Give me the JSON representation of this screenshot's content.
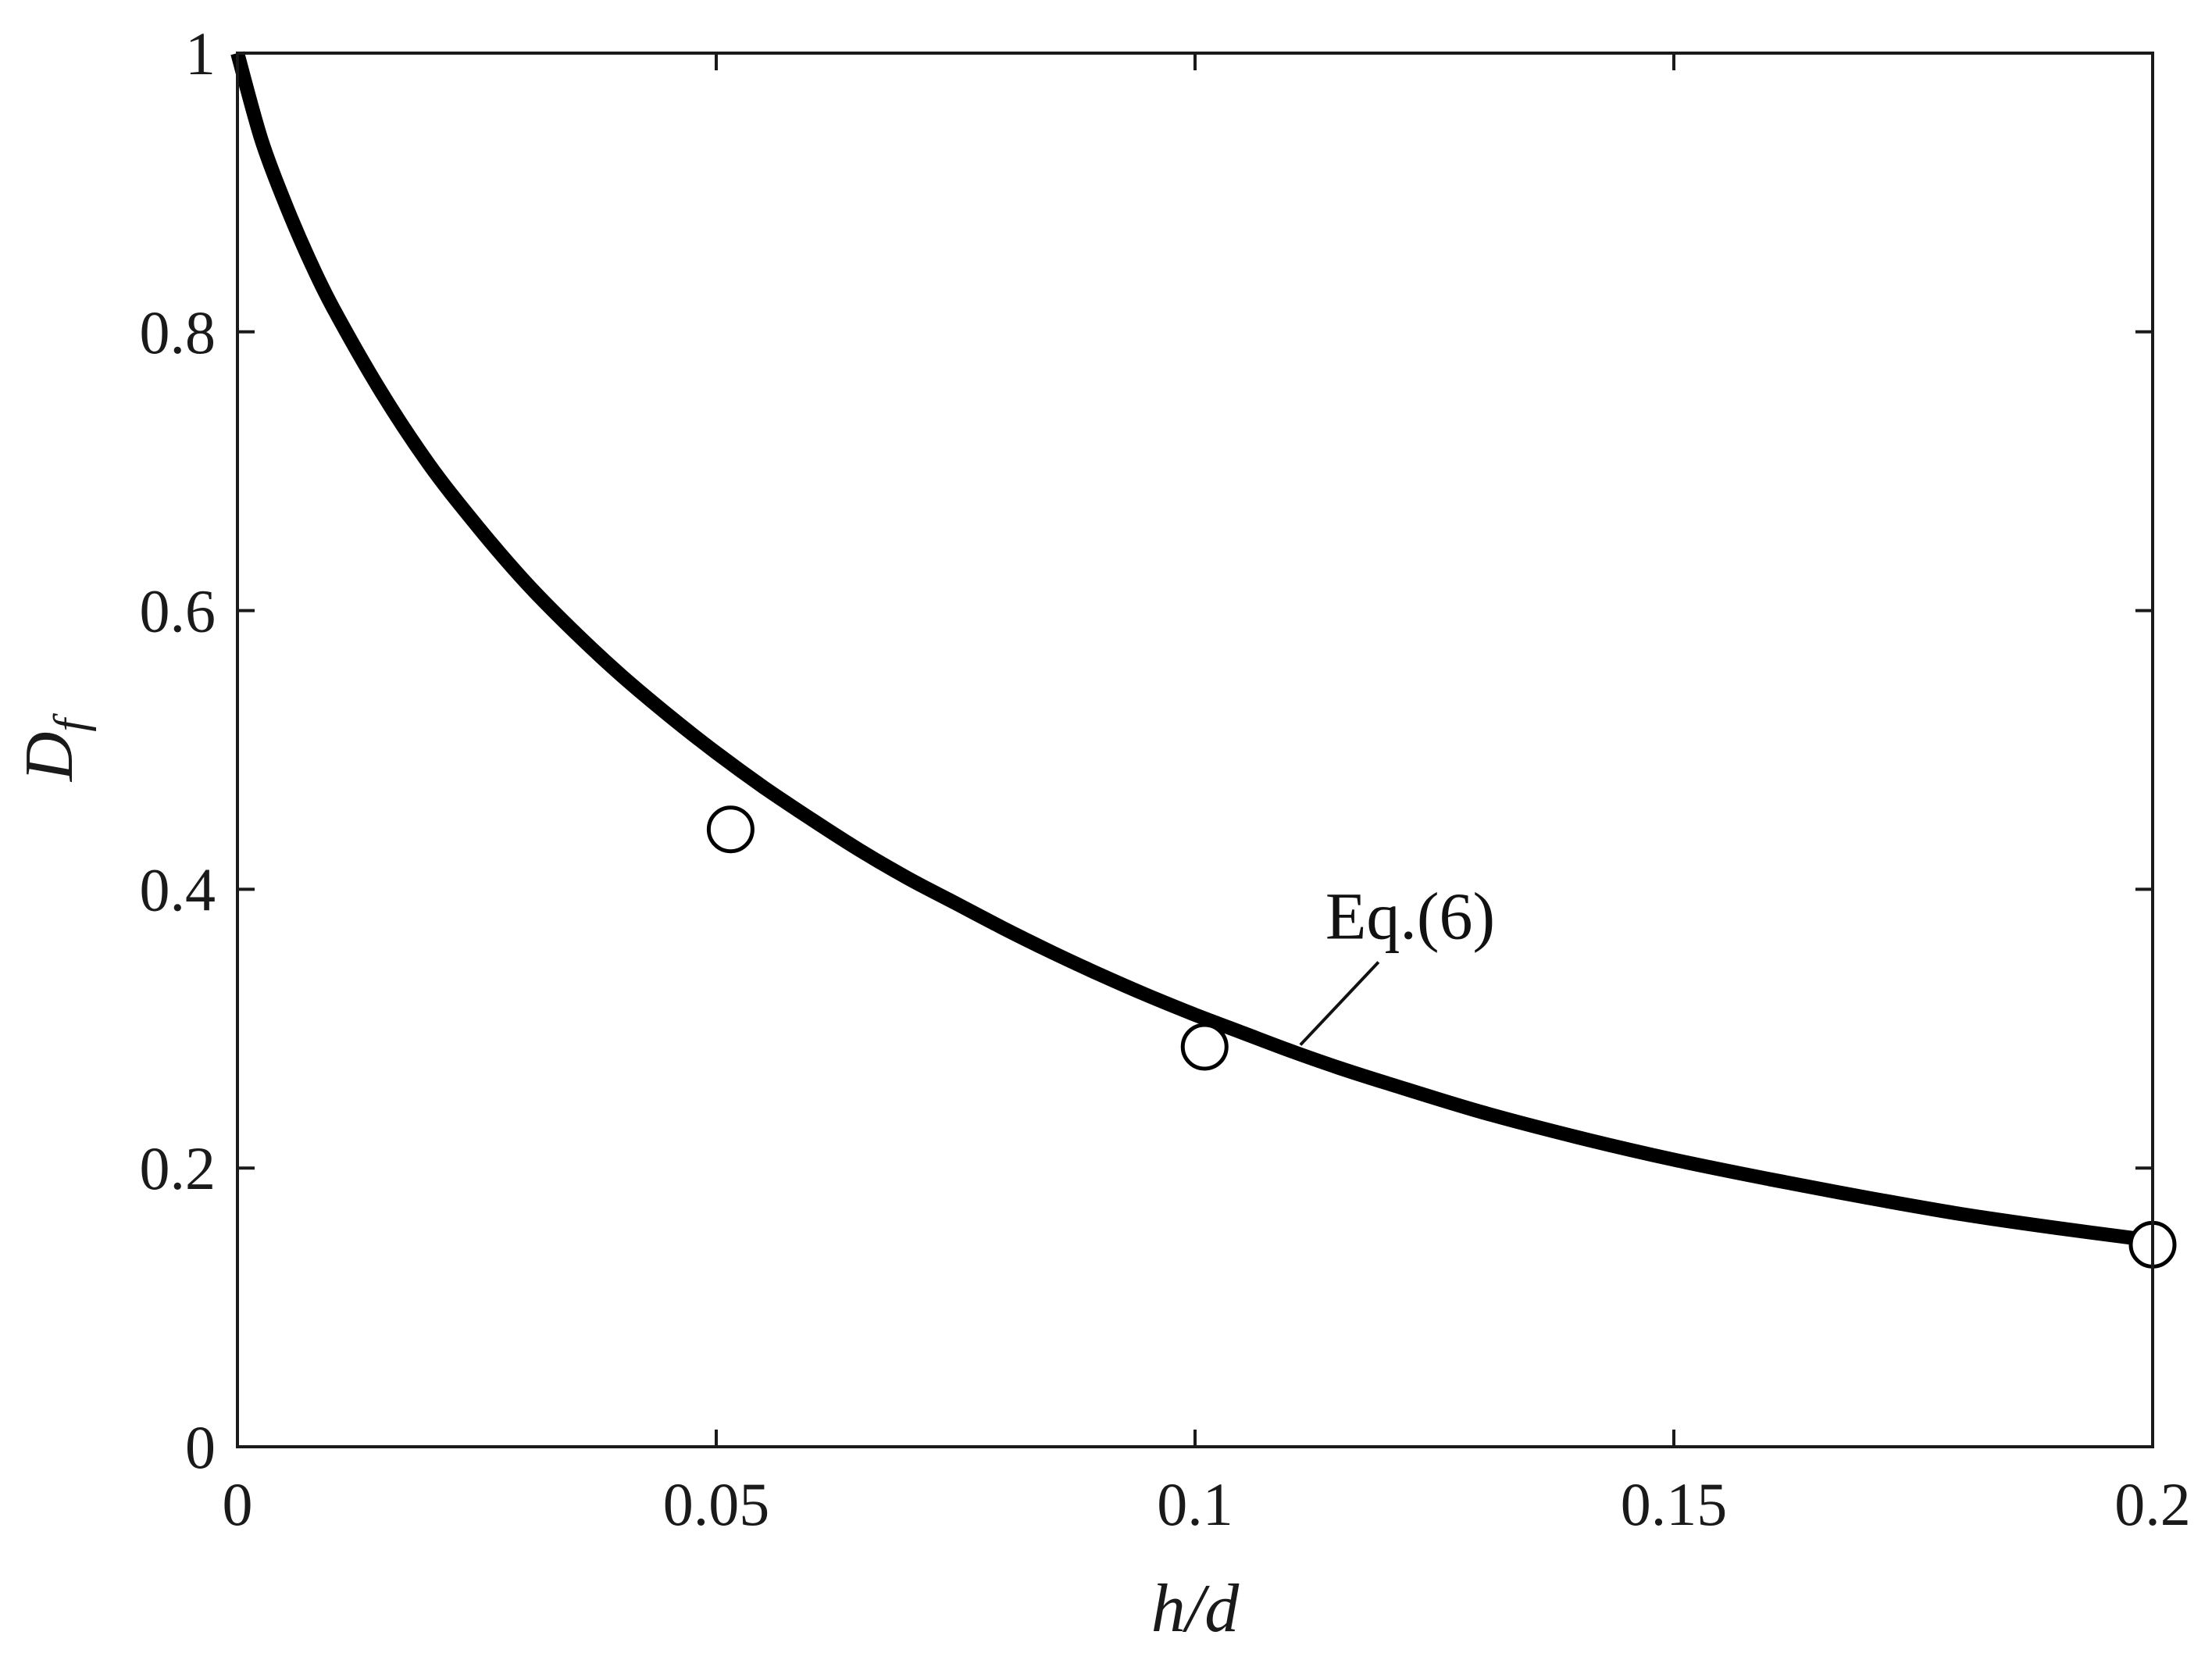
{
  "chart_data": {
    "type": "line",
    "title": "",
    "xlabel": "h/d",
    "ylabel": "D_f",
    "ylabel_main": "D",
    "ylabel_sub": "f",
    "xlim": [
      0,
      0.2
    ],
    "ylim": [
      0,
      1
    ],
    "x_ticks": [
      0,
      0.05,
      0.1,
      0.15,
      0.2
    ],
    "x_tick_labels": [
      "0",
      "0.05",
      "0.1",
      "0.15",
      "0.2"
    ],
    "y_ticks": [
      0,
      0.2,
      0.4,
      0.6,
      0.8,
      1
    ],
    "y_tick_labels": [
      "0",
      "0.2",
      "0.4",
      "0.6",
      "0.8",
      "1"
    ],
    "grid": false,
    "series": [
      {
        "kind": "line",
        "color": "#000000",
        "x": [
          0,
          0.0025,
          0.005,
          0.0075,
          0.01,
          0.015,
          0.02,
          0.025,
          0.03,
          0.035,
          0.04,
          0.045,
          0.05,
          0.055,
          0.06,
          0.065,
          0.07,
          0.075,
          0.08,
          0.085,
          0.09,
          0.095,
          0.1,
          0.105,
          0.11,
          0.115,
          0.12,
          0.13,
          0.14,
          0.15,
          0.16,
          0.17,
          0.18,
          0.19,
          0.2
        ],
        "y": [
          1.0,
          0.938,
          0.892,
          0.852,
          0.817,
          0.757,
          0.705,
          0.661,
          0.621,
          0.586,
          0.554,
          0.525,
          0.498,
          0.473,
          0.45,
          0.428,
          0.408,
          0.39,
          0.372,
          0.355,
          0.339,
          0.324,
          0.31,
          0.297,
          0.284,
          0.272,
          0.261,
          0.24,
          0.222,
          0.206,
          0.192,
          0.179,
          0.167,
          0.157,
          0.148
        ]
      },
      {
        "kind": "scatter",
        "marker": "open-circle",
        "x": [
          0.0515,
          0.101,
          0.2
        ],
        "y": [
          0.443,
          0.287,
          0.145
        ]
      }
    ],
    "annotations": [
      {
        "text": "Eq.(6)",
        "target_x": 0.111,
        "target_y": 0.285
      }
    ]
  }
}
